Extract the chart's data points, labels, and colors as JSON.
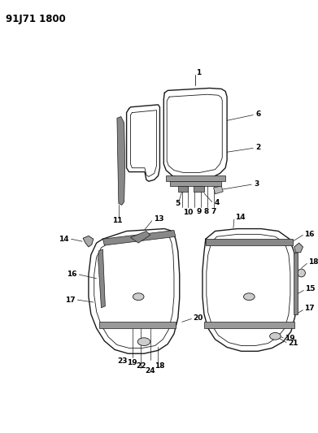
{
  "title": "91J71 1800",
  "bg_color": "#ffffff",
  "line_color": "#1a1a1a",
  "text_color": "#000000",
  "title_fontsize": 8.5,
  "label_fontsize": 6.5,
  "figsize": [
    3.91,
    5.33
  ],
  "dpi": 100
}
